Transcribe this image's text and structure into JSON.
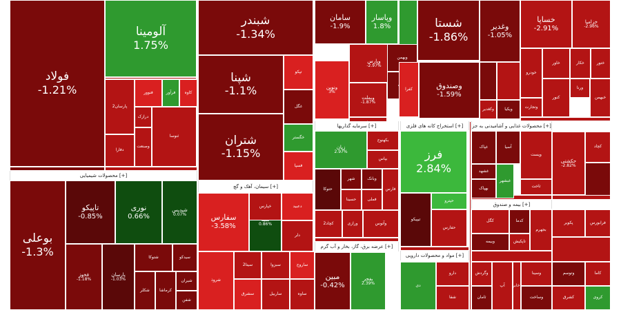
{
  "colors": {
    "dark_red": "#7a0a0a",
    "red": "#b31414",
    "bright_red": "#d92020",
    "dark_green": "#0f4d0f",
    "green": "#2f9a2f",
    "bright_green": "#3cb83c",
    "maroon": "#5a0808"
  },
  "sectors": [
    {
      "label": "محصولات شیمیایی [+]"
    },
    {
      "label": "سیمان، آهک و گچ [+]"
    },
    {
      "label": "سرمایه گذاریها [+]"
    },
    {
      "label": "استخراج کانه های فلزی [+]"
    },
    {
      "label": "محصولات غذایی و آشامیدنی به جز [+]"
    },
    {
      "label": "عرضه برق، گاز، بخار و آب گرم [+]"
    },
    {
      "label": "مواد و محصولات دارویی [+]"
    },
    {
      "label": "بیمه و صندوق [+]"
    }
  ],
  "tiles": [
    {
      "name": "فولاد",
      "pct": "-1.21%"
    },
    {
      "name": "آلومینا",
      "pct": "1.75%"
    },
    {
      "name": "شبندر",
      "pct": "-1.34%"
    },
    {
      "name": "شپنا",
      "pct": "-1.1%"
    },
    {
      "name": "شتران",
      "pct": "-1.15%"
    },
    {
      "name": "سامان",
      "pct": "-1.9%"
    },
    {
      "name": "وپاسار",
      "pct": "1.8%"
    },
    {
      "name": "شستا",
      "pct": "-1.86%"
    },
    {
      "name": "وغدیر",
      "pct": "-1.05%"
    },
    {
      "name": "خساپا",
      "pct": "-2.91%"
    },
    {
      "name": "خزامیا",
      "pct": "-2.96%"
    },
    {
      "name": "بوعلی",
      "pct": "-1.3%"
    },
    {
      "name": "تاپیکو",
      "pct": "-0.85%"
    },
    {
      "name": "نوری",
      "pct": "0.66%"
    },
    {
      "name": "شپدیس",
      "pct": "0.07%"
    },
    {
      "name": "سفارس",
      "pct": "-3.58%"
    },
    {
      "name": "سیتا",
      "pct": "0.86%"
    },
    {
      "name": "فرز",
      "pct": "2.84%"
    },
    {
      "name": "مبین",
      "pct": "-0.42%"
    },
    {
      "name": "بفجر",
      "pct": "2.39%"
    },
    {
      "name": "وصندوق",
      "pct": "-1.59%"
    },
    {
      "name": "حکشتی",
      "pct": "-2.82%"
    },
    {
      "name": "ونوین",
      "pct": "3%"
    },
    {
      "name": "وپارس",
      "pct": "-2.97%"
    },
    {
      "name": "وبملت",
      "pct": "-1.87%"
    },
    {
      "name": "زیان",
      "pct": "2.97%"
    },
    {
      "name": "فخوز",
      "pct": "-1.18%"
    },
    {
      "name": "پارسان",
      "pct": "-1.03%"
    },
    {
      "name": "فنوور",
      "pct": ""
    },
    {
      "name": "کاوه",
      "pct": ""
    },
    {
      "name": "فرآور",
      "pct": ""
    },
    {
      "name": "شکلر",
      "pct": ""
    },
    {
      "name": "کرماشا",
      "pct": ""
    },
    {
      "name": "شیران",
      "pct": ""
    },
    {
      "name": "شفن",
      "pct": ""
    },
    {
      "name": "شتوکا",
      "pct": ""
    },
    {
      "name": "سیدکو",
      "pct": ""
    },
    {
      "name": "شروذ",
      "pct": ""
    },
    {
      "name": "ساروج",
      "pct": ""
    },
    {
      "name": "سیتا2",
      "pct": ""
    },
    {
      "name": "ساوه",
      "pct": ""
    },
    {
      "name": "سبزوا",
      "pct": ""
    },
    {
      "name": "ساربیل",
      "pct": ""
    },
    {
      "name": "سشرق",
      "pct": ""
    },
    {
      "name": "ومعادن",
      "pct": ""
    },
    {
      "name": "وبهمن",
      "pct": ""
    },
    {
      "name": "وسپه",
      "pct": ""
    },
    {
      "name": "شهر",
      "pct": ""
    },
    {
      "name": "وبانک",
      "pct": ""
    },
    {
      "name": "ویکیا",
      "pct": ""
    },
    {
      "name": "وکغدیر",
      "pct": ""
    },
    {
      "name": "غپاک",
      "pct": ""
    },
    {
      "name": "غشهد",
      "pct": ""
    },
    {
      "name": "بهپاک",
      "pct": ""
    },
    {
      "name": "غبشهر",
      "pct": ""
    },
    {
      "name": "خودرو",
      "pct": ""
    },
    {
      "name": "خاور",
      "pct": ""
    },
    {
      "name": "خکار",
      "pct": ""
    },
    {
      "name": "ختور",
      "pct": ""
    },
    {
      "name": "وتجارت",
      "pct": ""
    },
    {
      "name": "ورنا",
      "pct": ""
    },
    {
      "name": "خبهمن",
      "pct": ""
    },
    {
      "name": "فرابورس",
      "pct": ""
    },
    {
      "name": "پکویر",
      "pct": ""
    },
    {
      "name": "کگل",
      "pct": ""
    },
    {
      "name": "کچاد",
      "pct": ""
    },
    {
      "name": "کدما",
      "pct": ""
    },
    {
      "name": "وبیمه",
      "pct": ""
    },
    {
      "name": "دی",
      "pct": ""
    },
    {
      "name": "دارو",
      "pct": ""
    },
    {
      "name": "شفا",
      "pct": ""
    },
    {
      "name": "تیپیکو",
      "pct": ""
    },
    {
      "name": "حپترو",
      "pct": ""
    },
    {
      "name": "حفارس",
      "pct": ""
    },
    {
      "name": "وگردش",
      "pct": ""
    },
    {
      "name": "ثامان",
      "pct": ""
    },
    {
      "name": "آپ",
      "pct": ""
    },
    {
      "name": "اخابر",
      "pct": ""
    },
    {
      "name": "وسینا",
      "pct": ""
    },
    {
      "name": "وساخت",
      "pct": ""
    },
    {
      "name": "وتوسم",
      "pct": ""
    },
    {
      "name": "کاما",
      "pct": ""
    },
    {
      "name": "کشرق",
      "pct": ""
    },
    {
      "name": "کروی",
      "pct": ""
    },
    {
      "name": "تاپکیش",
      "pct": ""
    },
    {
      "name": "بجهرم",
      "pct": ""
    },
    {
      "name": "بکهنوج",
      "pct": ""
    },
    {
      "name": "بپاس",
      "pct": ""
    },
    {
      "name": "حتوکا",
      "pct": ""
    },
    {
      "name": "حسینا",
      "pct": ""
    },
    {
      "name": "فملی",
      "pct": ""
    },
    {
      "name": "فارس",
      "pct": ""
    },
    {
      "name": "کچاد2",
      "pct": ""
    },
    {
      "name": "ورازی",
      "pct": ""
    },
    {
      "name": "وآتوس",
      "pct": ""
    },
    {
      "name": "تپکو",
      "pct": ""
    },
    {
      "name": "غگل",
      "pct": ""
    },
    {
      "name": "خگستر",
      "pct": ""
    },
    {
      "name": "فسپا",
      "pct": ""
    },
    {
      "name": "خپارس",
      "pct": ""
    },
    {
      "name": "دعبید",
      "pct": ""
    },
    {
      "name": "دلر",
      "pct": ""
    },
    {
      "name": "پارسان2",
      "pct": ""
    },
    {
      "name": "دفارا",
      "pct": ""
    },
    {
      "name": "درازک",
      "pct": ""
    },
    {
      "name": "وصنعت",
      "pct": ""
    },
    {
      "name": "ثنوسا",
      "pct": ""
    },
    {
      "name": "ثاخت",
      "pct": ""
    },
    {
      "name": "آسیا",
      "pct": ""
    },
    {
      "name": "وپست",
      "pct": ""
    },
    {
      "name": "کنور",
      "pct": ""
    },
    {
      "name": "کفرا",
      "pct": ""
    }
  ]
}
